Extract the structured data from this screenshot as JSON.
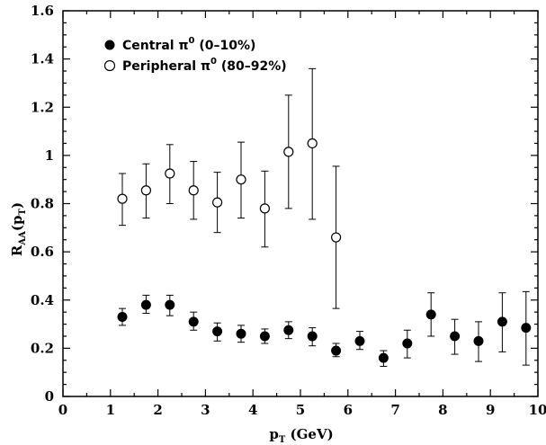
{
  "chart_data": {
    "type": "scatter",
    "xlabel_main": "p",
    "xlabel_sub": "T",
    "xlabel_rest": " (GeV)",
    "ylabel_main": "R",
    "ylabel_sub": "AA",
    "ylabel_paren": "(p",
    "ylabel_paren_sub": "T",
    "ylabel_close": ")",
    "xlim": [
      0,
      10
    ],
    "ylim": [
      0,
      1.6
    ],
    "xticks": [
      0,
      1,
      2,
      3,
      4,
      5,
      6,
      7,
      8,
      9,
      10
    ],
    "yticks": [
      0,
      0.2,
      0.4,
      0.6,
      0.8,
      1,
      1.2,
      1.4,
      1.6
    ],
    "xtick_labels": [
      "0",
      "1",
      "2",
      "3",
      "4",
      "5",
      "6",
      "7",
      "8",
      "9",
      "10"
    ],
    "ytick_labels": [
      "0",
      "0.2",
      "0.4",
      "0.6",
      "0.8",
      "1",
      "1.2",
      "1.4",
      "1.6"
    ],
    "legend_position": "top-left",
    "series": [
      {
        "name": "Central π⁰ (0–10%)",
        "legend_main": "Central π",
        "legend_sup": "0",
        "legend_rest": " (0–10%)",
        "marker": "filled-circle",
        "x": [
          1.25,
          1.75,
          2.25,
          2.75,
          3.25,
          3.75,
          4.25,
          4.75,
          5.25,
          5.75,
          6.25,
          6.75,
          7.25,
          7.75,
          8.25,
          8.75,
          9.25,
          9.75
        ],
        "y": [
          0.33,
          0.38,
          0.38,
          0.31,
          0.27,
          0.26,
          0.25,
          0.275,
          0.25,
          0.19,
          0.23,
          0.16,
          0.22,
          0.34,
          0.25,
          0.23,
          0.31,
          0.285
        ],
        "err_low": [
          0.295,
          0.345,
          0.335,
          0.275,
          0.23,
          0.225,
          0.22,
          0.24,
          0.21,
          0.165,
          0.195,
          0.125,
          0.16,
          0.25,
          0.175,
          0.145,
          0.185,
          0.13
        ],
        "err_high": [
          0.365,
          0.42,
          0.42,
          0.35,
          0.305,
          0.295,
          0.28,
          0.31,
          0.285,
          0.22,
          0.27,
          0.19,
          0.275,
          0.43,
          0.32,
          0.31,
          0.43,
          0.435
        ]
      },
      {
        "name": "Peripheral π⁰ (80–92%)",
        "legend_main": "Peripheral π",
        "legend_sup": "0",
        "legend_rest": " (80–92%)",
        "marker": "open-circle",
        "x": [
          1.25,
          1.75,
          2.25,
          2.75,
          3.25,
          3.75,
          4.25,
          4.75,
          5.25,
          5.75
        ],
        "y": [
          0.82,
          0.855,
          0.925,
          0.855,
          0.805,
          0.9,
          0.78,
          1.015,
          1.05,
          0.66
        ],
        "err_low": [
          0.71,
          0.74,
          0.8,
          0.735,
          0.68,
          0.74,
          0.62,
          0.78,
          0.735,
          0.365
        ],
        "err_high": [
          0.925,
          0.965,
          1.045,
          0.975,
          0.93,
          1.055,
          0.935,
          1.25,
          1.36,
          0.955
        ]
      }
    ]
  }
}
